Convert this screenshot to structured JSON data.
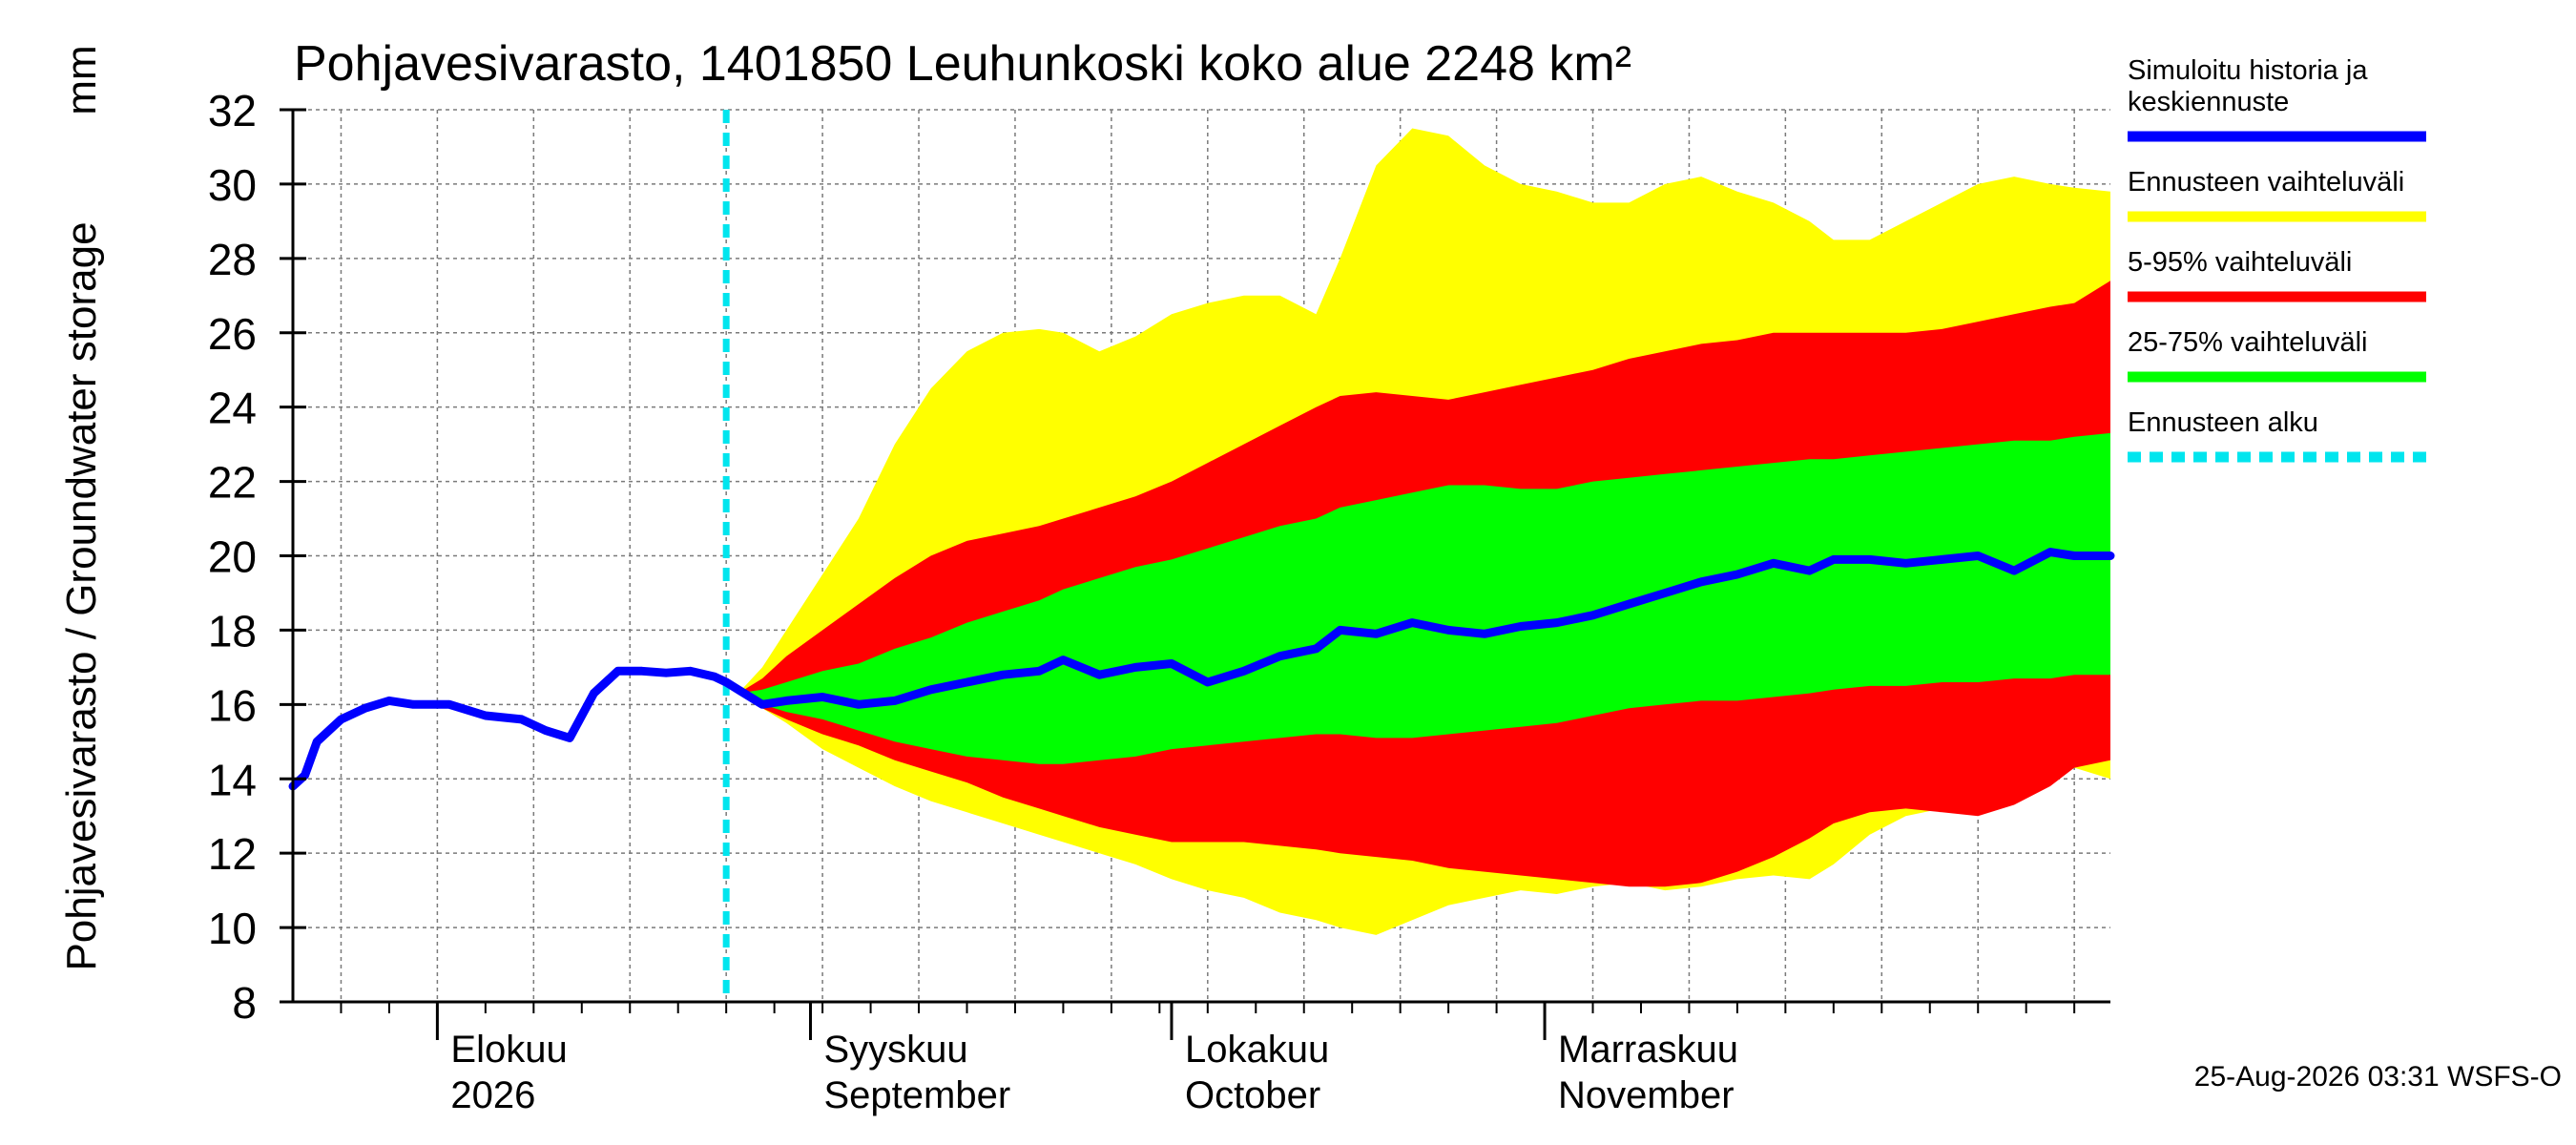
{
  "chart_data": {
    "type": "area",
    "title": "Pohjavesivarasto, 1401850 Leuhunkoski koko alue 2248 km²",
    "ylabel": "Pohjavesivarasto / Groundwater storage",
    "yunit": "mm",
    "ylim": [
      8,
      32
    ],
    "yticks": [
      "8",
      "10",
      "12",
      "14",
      "16",
      "18",
      "20",
      "22",
      "24",
      "26",
      "28",
      "30",
      "32"
    ],
    "grid": true,
    "legend_position": "right",
    "x_range": [
      "2026-07-20",
      "2026-12-18"
    ],
    "forecast_start": "2026-08-25",
    "month_labels": [
      {
        "date": "2026-08-01",
        "line1": "Elokuu",
        "line2": "2026"
      },
      {
        "date": "2026-09-01",
        "line1": "Syyskuu",
        "line2": "September"
      },
      {
        "date": "2026-10-01",
        "line1": "Lokakuu",
        "line2": "October"
      },
      {
        "date": "2026-11-01",
        "line1": "Marraskuu",
        "line2": "November"
      }
    ],
    "colors": {
      "median": "#0000ff",
      "range": "#ffff00",
      "p5_95": "#ff0000",
      "p25_75": "#00ff00",
      "forecast_start": "#00e5ee"
    },
    "legend": [
      {
        "key": "median",
        "label_lines": [
          "Simuloitu historia ja",
          "keskiennuste"
        ]
      },
      {
        "key": "range",
        "label_lines": [
          "Ennusteen vaihteluväli"
        ]
      },
      {
        "key": "p5_95",
        "label_lines": [
          "5-95% vaihteluväli"
        ]
      },
      {
        "key": "p25_75",
        "label_lines": [
          "25-75% vaihteluväli"
        ]
      },
      {
        "key": "forecast_start",
        "label_lines": [
          "Ennusteen alku"
        ]
      }
    ],
    "series": [
      {
        "key": "history_median",
        "x": [
          "2026-07-20",
          "2026-07-21",
          "2026-07-22",
          "2026-07-24",
          "2026-07-26",
          "2026-07-28",
          "2026-07-30",
          "2026-08-02",
          "2026-08-05",
          "2026-08-08",
          "2026-08-10",
          "2026-08-12",
          "2026-08-14",
          "2026-08-16",
          "2026-08-18",
          "2026-08-20",
          "2026-08-22",
          "2026-08-24",
          "2026-08-25",
          "2026-08-26",
          "2026-08-28",
          "2026-08-30",
          "2026-09-02",
          "2026-09-05",
          "2026-09-08",
          "2026-09-11",
          "2026-09-14",
          "2026-09-17",
          "2026-09-20",
          "2026-09-22",
          "2026-09-25",
          "2026-09-28",
          "2026-10-01",
          "2026-10-04",
          "2026-10-07",
          "2026-10-10",
          "2026-10-13",
          "2026-10-15",
          "2026-10-18",
          "2026-10-21",
          "2026-10-24",
          "2026-10-27",
          "2026-10-30",
          "2026-11-02",
          "2026-11-05",
          "2026-11-08",
          "2026-11-11",
          "2026-11-14",
          "2026-11-17",
          "2026-11-20",
          "2026-11-23",
          "2026-11-25",
          "2026-11-28",
          "2026-12-01",
          "2026-12-04",
          "2026-12-07",
          "2026-12-10",
          "2026-12-13",
          "2026-12-15",
          "2026-12-18"
        ],
        "y": [
          13.8,
          14.1,
          15.0,
          15.6,
          15.9,
          16.1,
          16.0,
          16.0,
          15.7,
          15.6,
          15.3,
          15.1,
          16.3,
          16.9,
          16.9,
          16.85,
          16.9,
          16.75,
          16.6,
          16.4,
          16.0,
          16.1,
          16.2,
          16.0,
          16.1,
          16.4,
          16.6,
          16.8,
          16.9,
          17.2,
          16.8,
          17.0,
          17.1,
          16.6,
          16.9,
          17.3,
          17.5,
          18.0,
          17.9,
          18.2,
          18.0,
          17.9,
          18.1,
          18.2,
          18.4,
          18.7,
          19.0,
          19.3,
          19.5,
          19.8,
          19.6,
          19.9,
          19.9,
          19.8,
          19.9,
          20.0,
          19.6,
          20.1,
          20.0,
          20.0
        ]
      },
      {
        "key": "forecast_median",
        "x": [
          "2026-08-26",
          "2026-08-28",
          "2026-08-30",
          "2026-09-02",
          "2026-09-05",
          "2026-09-08",
          "2026-09-11",
          "2026-09-14",
          "2026-09-17",
          "2026-09-20",
          "2026-09-22",
          "2026-09-25",
          "2026-09-28",
          "2026-10-01",
          "2026-10-04",
          "2026-10-07",
          "2026-10-10",
          "2026-10-13",
          "2026-10-15",
          "2026-10-18",
          "2026-10-21",
          "2026-10-24",
          "2026-10-27",
          "2026-10-30",
          "2026-11-02",
          "2026-11-05",
          "2026-11-08",
          "2026-11-11",
          "2026-11-14",
          "2026-11-17",
          "2026-11-20",
          "2026-11-23",
          "2026-11-25",
          "2026-11-28",
          "2026-12-01",
          "2026-12-04",
          "2026-12-07",
          "2026-12-10",
          "2026-12-13",
          "2026-12-15",
          "2026-12-18"
        ],
        "range_min": [
          16.3,
          15.9,
          15.5,
          14.8,
          14.3,
          13.8,
          13.4,
          13.1,
          12.8,
          12.5,
          12.3,
          12.0,
          11.7,
          11.3,
          11.0,
          10.8,
          10.4,
          10.2,
          10.0,
          9.8,
          10.2,
          10.6,
          10.8,
          11.0,
          10.9,
          11.1,
          11.2,
          11.0,
          11.1,
          11.3,
          11.4,
          11.3,
          11.7,
          12.5,
          13.0,
          13.2,
          13.4,
          13.8,
          14.2,
          14.3,
          14.0
        ],
        "p5": [
          16.3,
          15.9,
          15.6,
          15.2,
          14.9,
          14.5,
          14.2,
          13.9,
          13.5,
          13.2,
          13.0,
          12.7,
          12.5,
          12.3,
          12.3,
          12.3,
          12.2,
          12.1,
          12.0,
          11.9,
          11.8,
          11.6,
          11.5,
          11.4,
          11.3,
          11.2,
          11.1,
          11.1,
          11.2,
          11.5,
          11.9,
          12.4,
          12.8,
          13.1,
          13.2,
          13.1,
          13.0,
          13.3,
          13.8,
          14.3,
          14.5
        ],
        "p25": [
          16.3,
          16.0,
          15.8,
          15.6,
          15.3,
          15.0,
          14.8,
          14.6,
          14.5,
          14.4,
          14.4,
          14.5,
          14.6,
          14.8,
          14.9,
          15.0,
          15.1,
          15.2,
          15.2,
          15.1,
          15.1,
          15.2,
          15.3,
          15.4,
          15.5,
          15.7,
          15.9,
          16.0,
          16.1,
          16.1,
          16.2,
          16.3,
          16.4,
          16.5,
          16.5,
          16.6,
          16.6,
          16.7,
          16.7,
          16.8,
          16.8
        ],
        "p75": [
          16.3,
          16.4,
          16.6,
          16.9,
          17.1,
          17.5,
          17.8,
          18.2,
          18.5,
          18.8,
          19.1,
          19.4,
          19.7,
          19.9,
          20.2,
          20.5,
          20.8,
          21.0,
          21.3,
          21.5,
          21.7,
          21.9,
          21.9,
          21.8,
          21.8,
          22.0,
          22.1,
          22.2,
          22.3,
          22.4,
          22.5,
          22.6,
          22.6,
          22.7,
          22.8,
          22.9,
          23.0,
          23.1,
          23.1,
          23.2,
          23.3
        ],
        "p95": [
          16.3,
          16.7,
          17.3,
          18.0,
          18.7,
          19.4,
          20.0,
          20.4,
          20.6,
          20.8,
          21.0,
          21.3,
          21.6,
          22.0,
          22.5,
          23.0,
          23.5,
          24.0,
          24.3,
          24.4,
          24.3,
          24.2,
          24.4,
          24.6,
          24.8,
          25.0,
          25.3,
          25.5,
          25.7,
          25.8,
          26.0,
          26.0,
          26.0,
          26.0,
          26.0,
          26.1,
          26.3,
          26.5,
          26.7,
          26.8,
          27.4
        ],
        "range_max": [
          16.3,
          17.0,
          18.0,
          19.5,
          21.0,
          23.0,
          24.5,
          25.5,
          26.0,
          26.1,
          26.0,
          25.5,
          25.9,
          26.5,
          26.8,
          27.0,
          27.0,
          26.5,
          28.0,
          30.5,
          31.5,
          31.3,
          30.5,
          30.0,
          29.8,
          29.5,
          29.5,
          30.0,
          30.2,
          29.8,
          29.5,
          29.0,
          28.5,
          28.5,
          29.0,
          29.5,
          30.0,
          30.2,
          30.0,
          29.9,
          29.8
        ],
        "y": [
          16.0,
          16.1,
          16.2,
          16.0,
          16.1,
          16.4,
          16.6,
          16.8,
          16.9,
          17.2,
          16.8,
          17.0,
          17.1,
          16.6,
          16.9,
          17.3,
          17.5,
          18.0,
          17.9,
          18.2,
          18.0,
          17.9,
          18.1,
          18.2,
          18.4,
          18.7,
          19.0,
          19.3,
          19.5,
          19.8,
          19.6,
          19.9,
          19.9,
          19.8,
          19.9,
          20.0,
          19.6,
          20.1,
          20.0,
          20.0,
          20.0
        ]
      }
    ],
    "footer": "25-Aug-2026 03:31 WSFS-O"
  }
}
